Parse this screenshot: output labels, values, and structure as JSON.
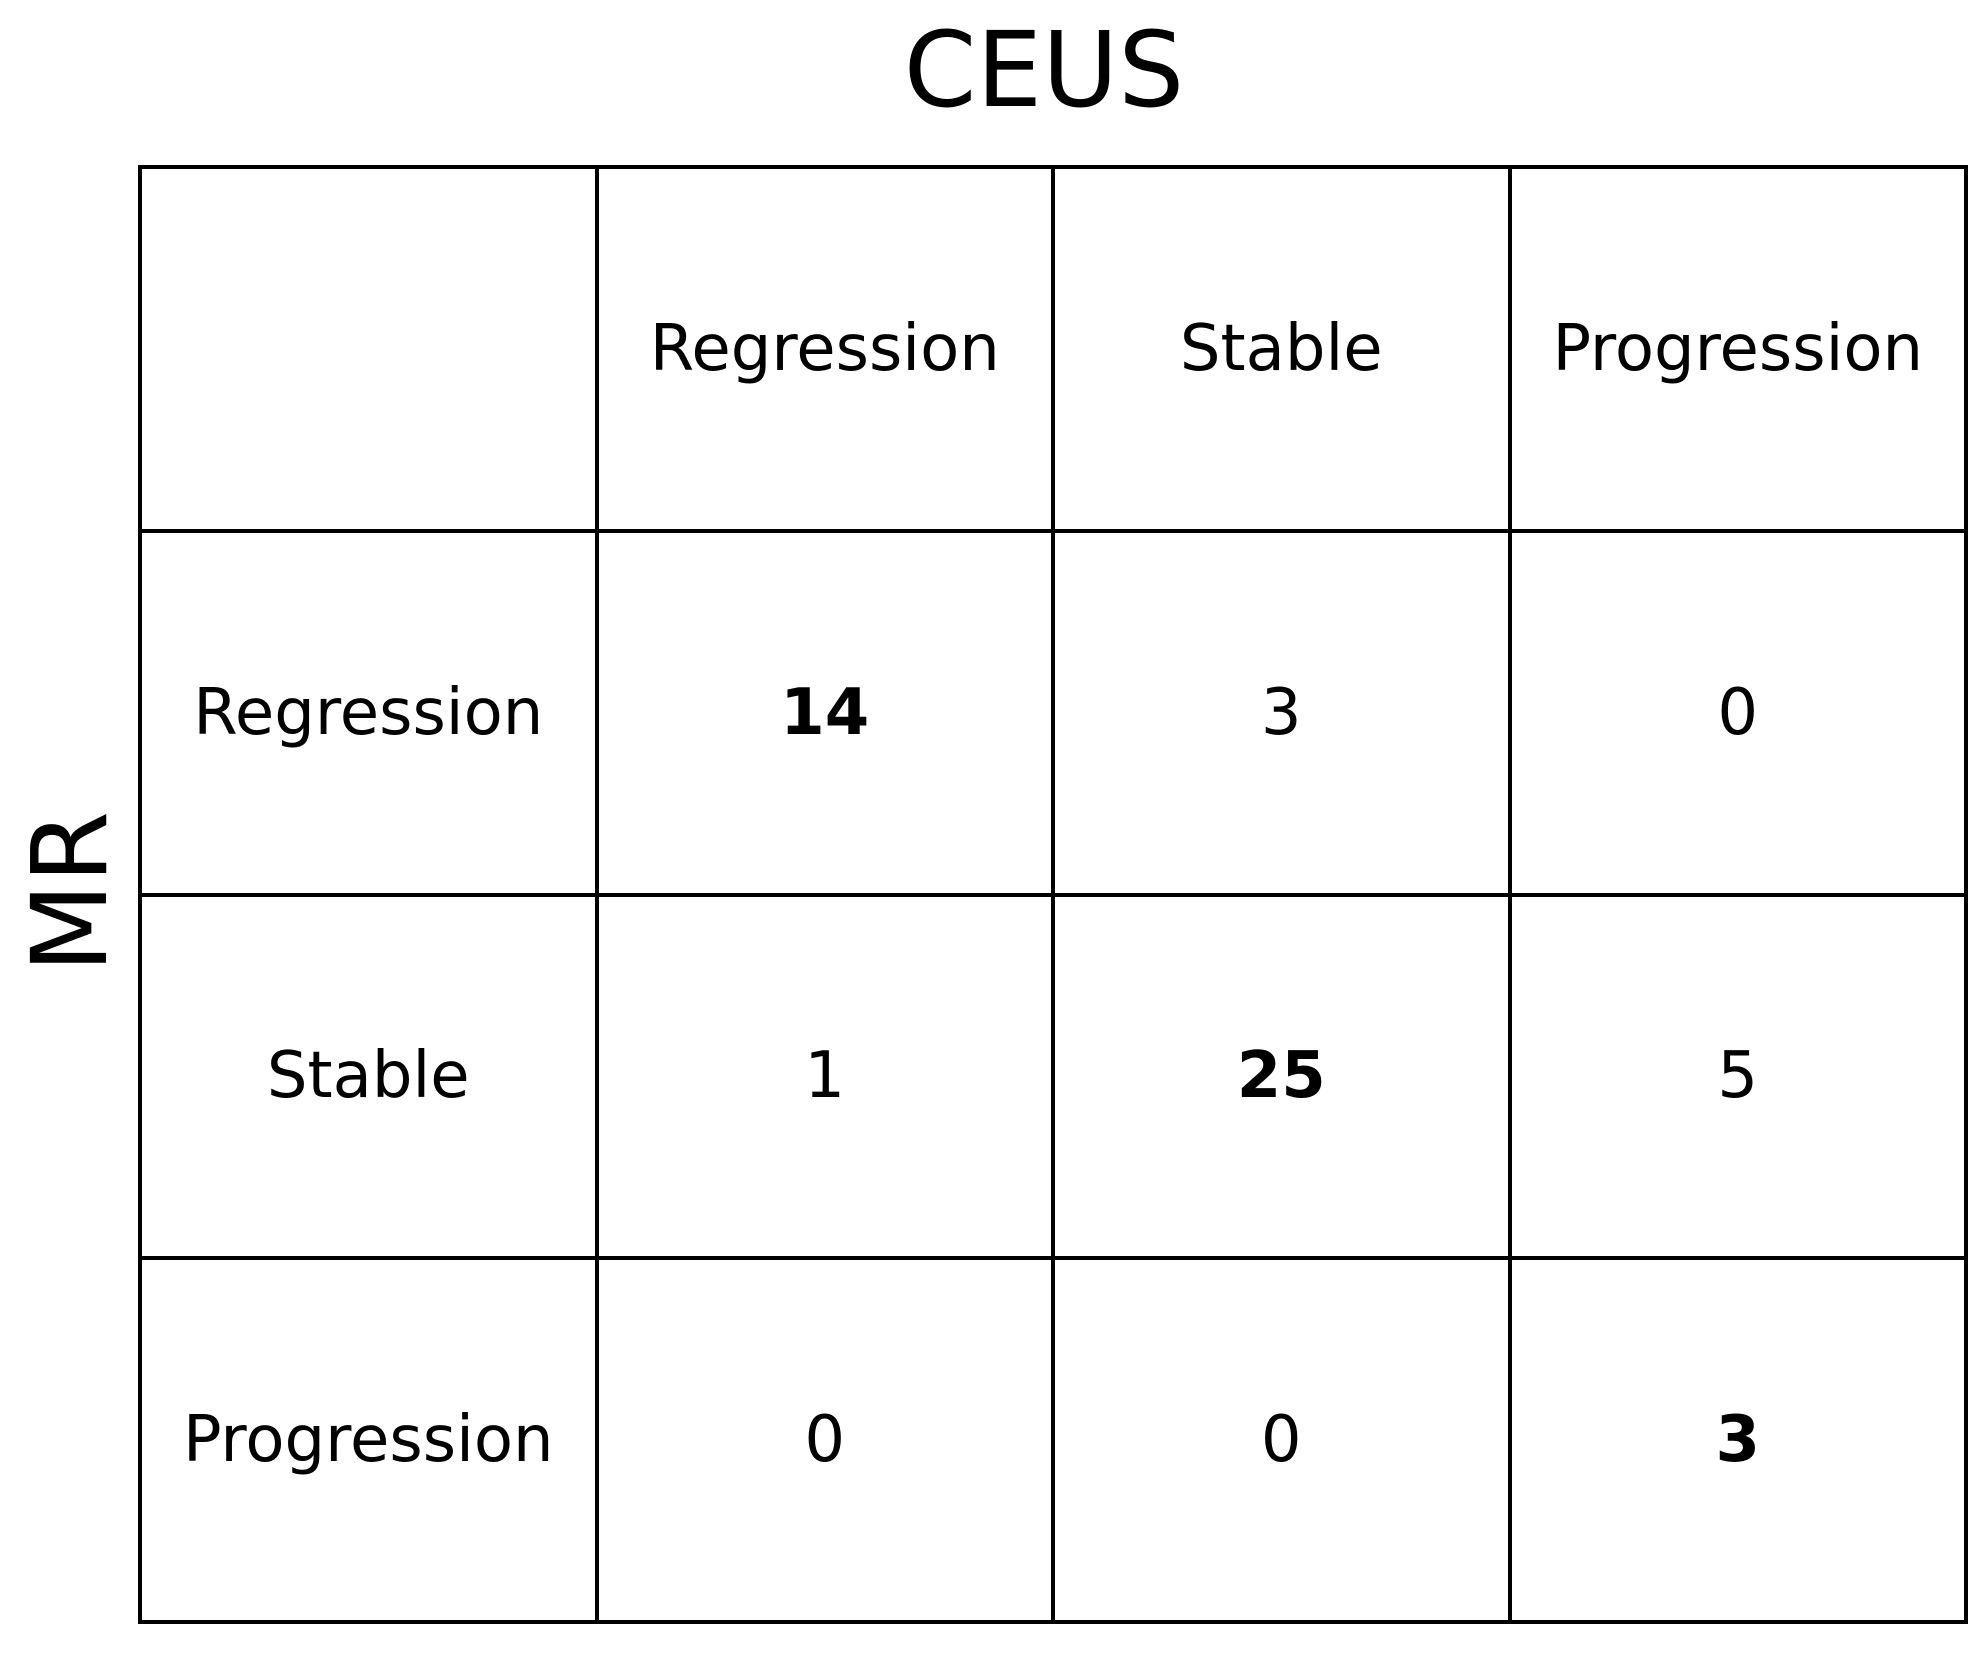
{
  "chart_data": {
    "type": "table",
    "title": "CEUS",
    "ylabel": "MR",
    "col_labels": [
      "Regression",
      "Stable",
      "Progression"
    ],
    "row_labels": [
      "Regression",
      "Stable",
      "Progression"
    ],
    "values": [
      [
        14,
        3,
        0
      ],
      [
        1,
        25,
        5
      ],
      [
        0,
        0,
        3
      ]
    ],
    "diagonal_bold": true
  }
}
